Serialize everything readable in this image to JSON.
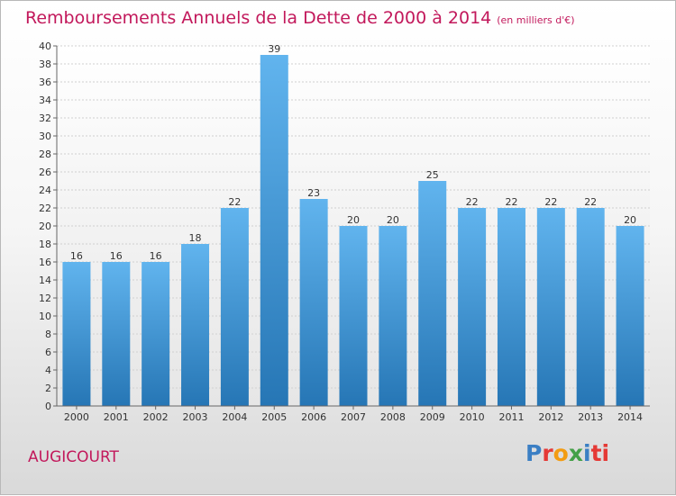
{
  "header": {
    "title": "Remboursements Annuels de la Dette de 2000 à 2014",
    "subtitle": "(en milliers d'€)"
  },
  "footer": {
    "town": "AUGICOURT",
    "logo_text": "Proxiti"
  },
  "colors": {
    "title": "#c2185b",
    "bar_top": "#61b4ee",
    "bar_bottom": "#2676b5"
  },
  "chart_data": {
    "type": "bar",
    "title": "Remboursements Annuels de la Dette de 2000 à 2014",
    "subtitle": "(en milliers d'€)",
    "categories": [
      "2000",
      "2001",
      "2002",
      "2003",
      "2004",
      "2005",
      "2006",
      "2007",
      "2008",
      "2009",
      "2010",
      "2011",
      "2012",
      "2013",
      "2014"
    ],
    "values": [
      16,
      16,
      16,
      18,
      22,
      39,
      23,
      20,
      20,
      25,
      22,
      22,
      22,
      22,
      20
    ],
    "xlabel": "",
    "ylabel": "",
    "ylim": [
      0,
      40
    ],
    "yticks": [
      0,
      2,
      4,
      6,
      8,
      10,
      12,
      14,
      16,
      18,
      20,
      22,
      24,
      26,
      28,
      30,
      32,
      34,
      36,
      38,
      40
    ],
    "grid": true,
    "legend": "none"
  }
}
